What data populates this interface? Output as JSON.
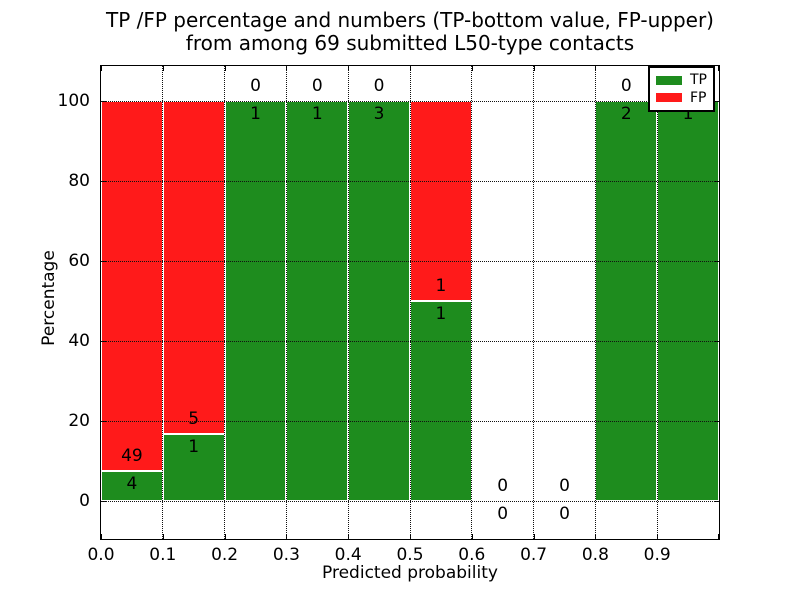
{
  "figure": {
    "title_line1": "TP /FP percentage and numbers (TP-bottom value, FP-upper)",
    "title_line2": "from among 69 submitted L50-type contacts",
    "xlabel": "Predicted probability",
    "ylabel": "Percentage"
  },
  "legend": {
    "items": [
      {
        "label": "TP",
        "color": "#1e8c1e"
      },
      {
        "label": "FP",
        "color": "#ff1a1a"
      }
    ]
  },
  "chart_data": {
    "type": "bar",
    "stacked": true,
    "units": "percent_of_bin",
    "title": "TP /FP percentage and numbers (TP-bottom value, FP-upper) from among 69 submitted L50-type contacts",
    "xlabel": "Predicted probability",
    "ylabel": "Percentage",
    "total_contacts": 69,
    "bin_edges": [
      0.0,
      0.1,
      0.2,
      0.3,
      0.4,
      0.5,
      0.6,
      0.7,
      0.8,
      0.9,
      1.0
    ],
    "x_tick_labels": [
      "0.0",
      "0.1",
      "0.2",
      "0.3",
      "0.4",
      "0.5",
      "0.6",
      "0.7",
      "0.8",
      "0.9"
    ],
    "y_ticks": [
      0,
      20,
      40,
      60,
      80,
      100
    ],
    "y_tick_labels": [
      "0",
      "20",
      "40",
      "60",
      "80",
      "100"
    ],
    "ylim": [
      -10,
      109
    ],
    "grid": true,
    "grid_style": "dotted",
    "legend_position": "upper right",
    "series": [
      {
        "name": "TP",
        "color": "#1e8c1e",
        "counts": [
          4,
          1,
          1,
          1,
          3,
          1,
          0,
          0,
          2,
          1
        ]
      },
      {
        "name": "FP",
        "color": "#ff1a1a",
        "counts": [
          49,
          5,
          0,
          0,
          0,
          1,
          0,
          0,
          0,
          0
        ]
      }
    ],
    "tp_percent_by_bin": [
      7.5,
      16.7,
      100,
      100,
      100,
      50,
      null,
      null,
      100,
      100
    ]
  }
}
